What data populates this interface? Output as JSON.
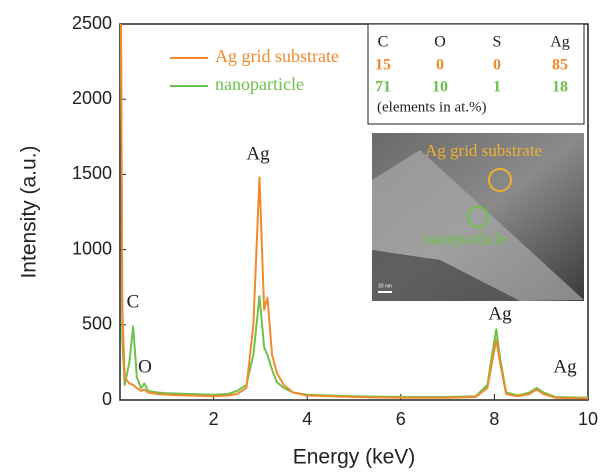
{
  "chart_data": {
    "type": "line",
    "x_label": "Energy (keV)",
    "y_label": "Intensity (a.u.)",
    "xlim": [
      0,
      10
    ],
    "ylim": [
      0,
      2500
    ],
    "xticks": [
      2,
      4,
      6,
      8,
      10
    ],
    "yticks": [
      0,
      500,
      1000,
      1500,
      2000,
      2500
    ],
    "legend": "upper left",
    "x": [
      0.02,
      0.05,
      0.1,
      0.2,
      0.28,
      0.36,
      0.45,
      0.52,
      0.6,
      0.8,
      1.0,
      1.5,
      2.0,
      2.3,
      2.5,
      2.7,
      2.85,
      2.98,
      3.08,
      3.15,
      3.25,
      3.35,
      3.5,
      3.7,
      4.0,
      5.0,
      6.0,
      7.0,
      7.6,
      7.85,
      7.95,
      8.04,
      8.12,
      8.25,
      8.5,
      8.75,
      8.9,
      9.05,
      9.3,
      10.0
    ],
    "series": [
      {
        "name": "Ag grid substrate",
        "color": "#f08a2b",
        "values": [
          2500,
          600,
          150,
          110,
          100,
          80,
          60,
          70,
          50,
          40,
          35,
          30,
          25,
          30,
          40,
          80,
          500,
          1480,
          600,
          680,
          300,
          180,
          100,
          50,
          30,
          20,
          15,
          15,
          20,
          80,
          250,
          400,
          250,
          40,
          25,
          40,
          70,
          40,
          15,
          10
        ]
      },
      {
        "name": "nanoparticle",
        "color": "#6cc24a",
        "values": [
          2500,
          400,
          100,
          250,
          490,
          150,
          80,
          110,
          60,
          50,
          45,
          40,
          35,
          40,
          60,
          100,
          300,
          690,
          350,
          300,
          200,
          120,
          80,
          50,
          35,
          25,
          20,
          20,
          25,
          100,
          300,
          470,
          280,
          50,
          30,
          50,
          80,
          50,
          20,
          15
        ]
      }
    ],
    "annotations": [
      "Ag",
      "C",
      "O",
      "Ag",
      "Ag"
    ],
    "inset_table": {
      "header": [
        "C",
        "O",
        "S",
        "Ag"
      ],
      "rows": [
        [
          15,
          0,
          0,
          85
        ],
        [
          71,
          10,
          1,
          18
        ]
      ],
      "note": "(elements in at.%)"
    },
    "inset_image": {
      "labels": [
        "Ag grid substrate",
        "nanoparticle"
      ],
      "scale_bar": "30 nm"
    }
  }
}
